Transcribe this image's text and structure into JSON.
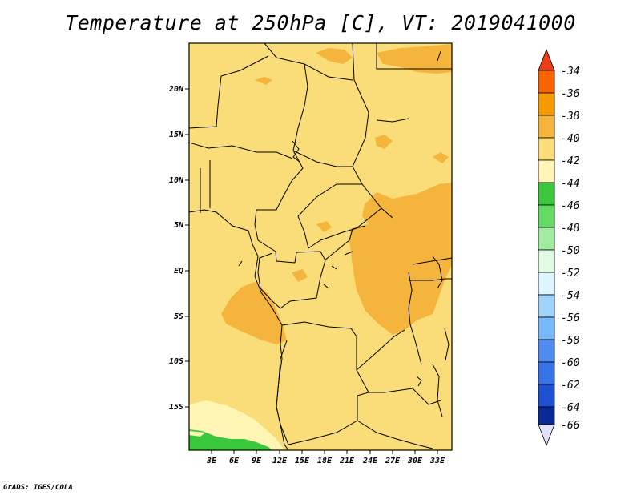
{
  "title": "Temperature at 250hPa [C], VT: 2019041000",
  "footer": "GrADS: IGES/COLA",
  "map": {
    "variable": "Temperature",
    "level": "250hPa",
    "units": "C",
    "valid_time": "2019041000",
    "lat_labels": [
      "20N",
      "15N",
      "10N",
      "5N",
      "EQ",
      "5S",
      "10S",
      "15S"
    ],
    "lon_labels": [
      "3E",
      "6E",
      "9E",
      "12E",
      "15E",
      "18E",
      "21E",
      "24E",
      "27E",
      "30E",
      "33E"
    ]
  },
  "colorbar": {
    "labels": [
      "-34",
      "-36",
      "-38",
      "-40",
      "-42",
      "-44",
      "-46",
      "-48",
      "-50",
      "-52",
      "-54",
      "-56",
      "-58",
      "-60",
      "-62",
      "-64",
      "-66"
    ],
    "colors": [
      "#f03c14",
      "#fa6400",
      "#f59b00",
      "#f5b43c",
      "#fadc78",
      "#fff5b4",
      "#3cc83c",
      "#64dc64",
      "#a0eba0",
      "#e1fae1",
      "#dcf5ff",
      "#a0d2fa",
      "#78b9fa",
      "#508cf0",
      "#3773e6",
      "#1e50d2",
      "#0a2896",
      "#e1e1fa"
    ]
  }
}
